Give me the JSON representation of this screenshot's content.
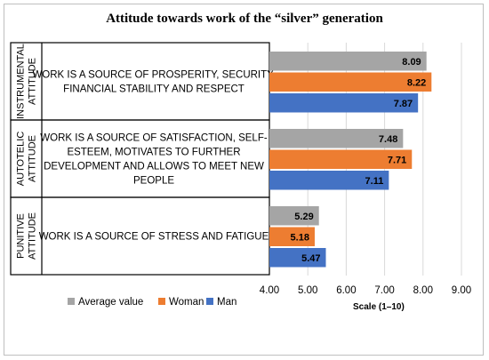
{
  "chart_data": {
    "type": "bar",
    "orientation": "horizontal",
    "title": "Attitude towards work of the “silver” generation",
    "xlabel": "Scale (1–10)",
    "xlim": [
      4,
      9
    ],
    "xticks": [
      "4.00",
      "5.00",
      "6.00",
      "7.00",
      "8.00",
      "9.00"
    ],
    "grid": true,
    "legend_position": "bottom-left",
    "groups": [
      {
        "group_label": "INSTRUMENTAL ATTITUDE",
        "category_lines": [
          "WORK IS A SOURCE OF PROSPERITY, SECURITY,",
          "FINANCIAL STABILITY AND RESPECT"
        ]
      },
      {
        "group_label": "AUTOTELIC ATTITUDE",
        "category_lines": [
          "WORK IS A SOURCE OF SATISFACTION, SELF-",
          "ESTEEM, MOTIVATES TO FURTHER",
          "DEVELOPMENT AND ALLOWS TO MEET NEW",
          "PEOPLE"
        ]
      },
      {
        "group_label": "PUNITIVE ATTITUDE",
        "category_lines": [
          "WORK IS A SOURCE OF STRESS AND FATIGUE"
        ]
      }
    ],
    "group_label_lines": [
      [
        "INSTRUMENTAL",
        "ATTITUDE"
      ],
      [
        "AUTOTELIC",
        "ATTITUDE"
      ],
      [
        "PUNITIVE",
        "ATTITUDE"
      ]
    ],
    "series": [
      {
        "name": "Average value",
        "color": "#a5a5a5",
        "values": [
          8.09,
          7.48,
          5.29
        ],
        "labels": [
          "8.09",
          "7.48",
          "5.29"
        ]
      },
      {
        "name": "Woman",
        "color": "#ed7d31",
        "values": [
          8.22,
          7.71,
          5.18
        ],
        "labels": [
          "8.22",
          "7.71",
          "5.18"
        ]
      },
      {
        "name": "Man",
        "color": "#4472c4",
        "values": [
          7.87,
          7.11,
          5.47
        ],
        "labels": [
          "7.87",
          "7.11",
          "5.47"
        ]
      }
    ]
  }
}
